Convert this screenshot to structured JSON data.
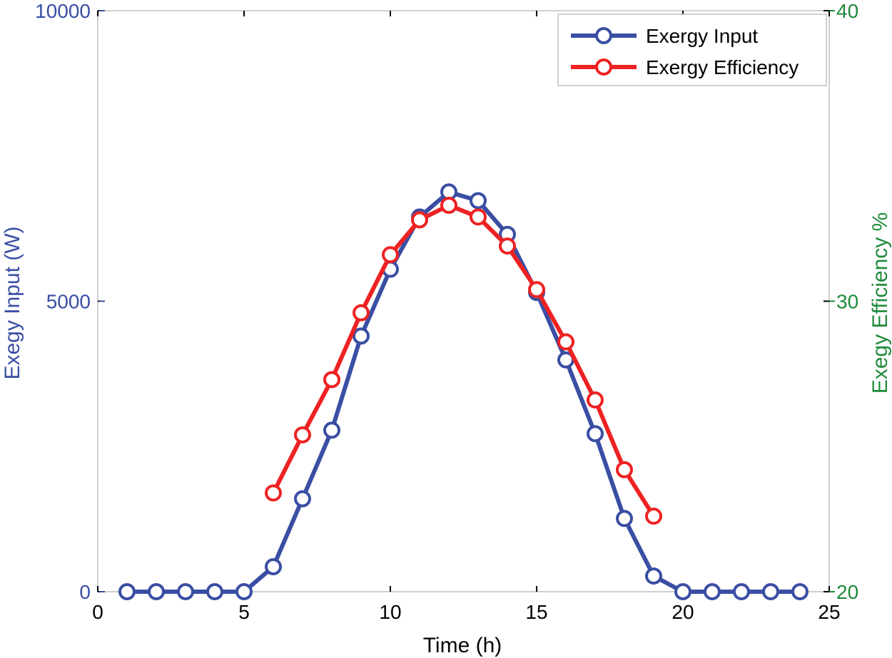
{
  "chart_data": {
    "type": "line",
    "title": "",
    "xlabel": "Time (h)",
    "ylabel": "Exegy Input (W)",
    "y2label": "Exegy Efficiency %",
    "xlim": [
      0,
      25
    ],
    "ylim": [
      0,
      10000
    ],
    "y2lim": [
      20,
      40
    ],
    "xticks": [
      "0",
      "5",
      "10",
      "15",
      "20",
      "25"
    ],
    "yticks": [
      "0",
      "5000",
      "10000"
    ],
    "y2ticks": [
      "20",
      "30",
      "40"
    ],
    "grid": false,
    "legend_position": "top-right",
    "colors": {
      "input": "#3a4ea3",
      "efficiency": "#ee2222",
      "left_axis": "#3a4ea3",
      "right_axis": "#1e8a3a",
      "frame": "#a0a0a0"
    },
    "series": [
      {
        "name": "Exergy Input",
        "axis": "left",
        "x": [
          1,
          2,
          3,
          4,
          5,
          6,
          7,
          8,
          9,
          10,
          11,
          12,
          13,
          14,
          15,
          16,
          17,
          18,
          19,
          20,
          21,
          22,
          23,
          24
        ],
        "values": [
          0,
          0,
          0,
          0,
          0,
          430,
          1600,
          2780,
          4400,
          5550,
          6450,
          6880,
          6730,
          6150,
          5150,
          3990,
          2720,
          1260,
          270,
          0,
          0,
          0,
          0,
          0
        ]
      },
      {
        "name": "Exergy Efficiency",
        "axis": "right",
        "x": [
          6,
          7,
          8,
          9,
          10,
          11,
          12,
          13,
          14,
          15,
          16,
          17,
          18,
          19
        ],
        "values": [
          23.4,
          25.4,
          27.3,
          29.6,
          31.6,
          32.8,
          33.3,
          32.9,
          31.9,
          30.4,
          28.6,
          26.6,
          24.2,
          22.6
        ]
      }
    ]
  }
}
